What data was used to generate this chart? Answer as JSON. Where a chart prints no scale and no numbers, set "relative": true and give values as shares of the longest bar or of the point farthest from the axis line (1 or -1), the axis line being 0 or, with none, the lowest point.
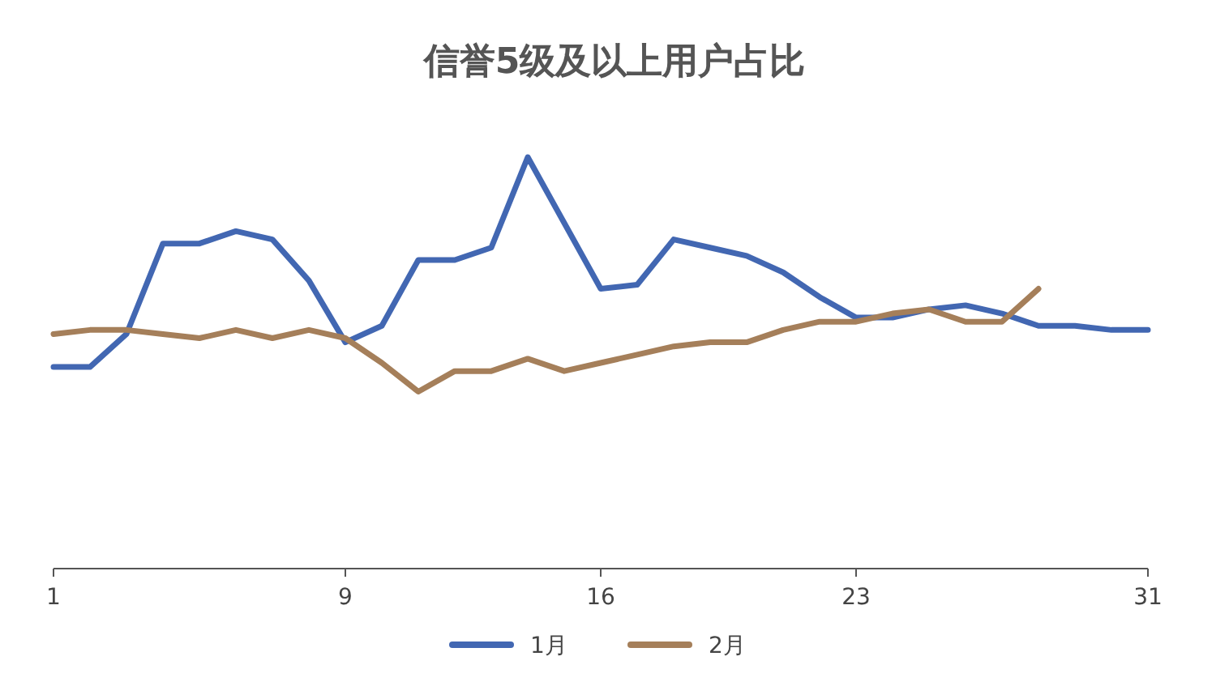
{
  "chart_data": {
    "type": "line",
    "title": "信誉5级及以上用户占比",
    "relative": true,
    "x": [
      1,
      2,
      3,
      4,
      5,
      6,
      7,
      8,
      9,
      10,
      11,
      12,
      13,
      14,
      15,
      16,
      17,
      18,
      19,
      20,
      21,
      22,
      23,
      24,
      25,
      26,
      27,
      28,
      29,
      30,
      31
    ],
    "xlim": [
      1,
      31
    ],
    "xticks": [
      1,
      9,
      16,
      23,
      31
    ],
    "legend": "bottom",
    "marker": "none",
    "line_style": "solid",
    "series": [
      {
        "name": "1月",
        "color": "#4267b2",
        "values": [
          0.49,
          0.49,
          0.57,
          0.79,
          0.79,
          0.82,
          0.8,
          0.7,
          0.55,
          0.59,
          0.75,
          0.75,
          0.78,
          1,
          0.84,
          0.68,
          0.69,
          0.8,
          0.78,
          0.76,
          0.72,
          0.66,
          0.61,
          0.61,
          0.63,
          0.64,
          0.62,
          0.59,
          0.59,
          0.58,
          0.58
        ]
      },
      {
        "name": "2月",
        "color": "#a57f5a",
        "x": [
          1,
          2,
          3,
          4,
          5,
          6,
          7,
          8,
          9,
          10,
          11,
          12,
          13,
          14,
          15,
          16,
          17,
          18,
          19,
          20,
          21,
          22,
          23,
          24,
          25,
          26,
          27,
          28
        ],
        "values": [
          0.57,
          0.58,
          0.58,
          0.57,
          0.56,
          0.58,
          0.56,
          0.58,
          0.56,
          0.5,
          0.43,
          0.48,
          0.48,
          0.51,
          0.48,
          0.5,
          0.52,
          0.54,
          0.55,
          0.55,
          0.58,
          0.6,
          0.6,
          0.62,
          0.63,
          0.6,
          0.6,
          0.68
        ]
      }
    ]
  }
}
